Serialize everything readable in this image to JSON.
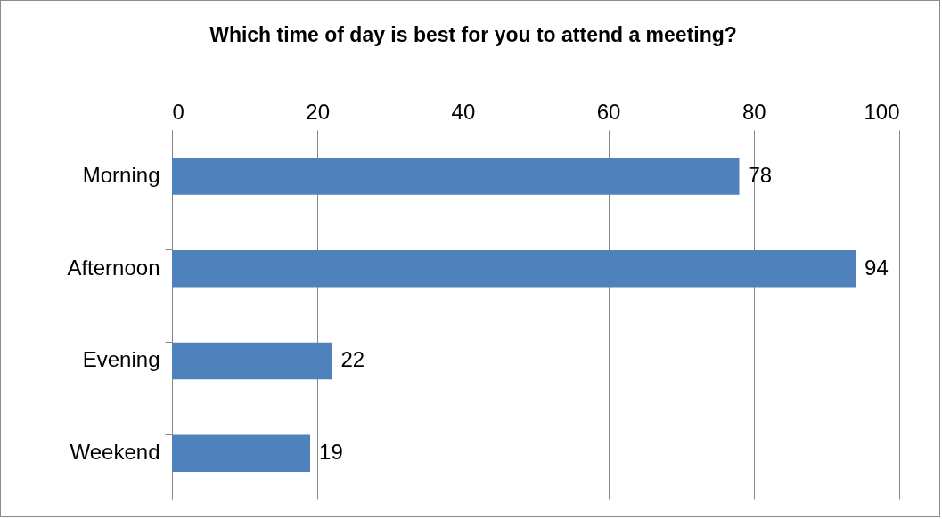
{
  "chart_data": {
    "type": "bar",
    "orientation": "horizontal",
    "title": "Which time of day is best for you to attend a meeting?",
    "categories": [
      "Morning",
      "Afternoon",
      "Evening",
      "Weekend"
    ],
    "values": [
      78,
      94,
      22,
      19
    ],
    "color": "#4f81bd",
    "xlim": [
      0,
      100
    ],
    "xticks": [
      0,
      20,
      40,
      60,
      80,
      100
    ],
    "grid": "x",
    "data_labels": true
  }
}
